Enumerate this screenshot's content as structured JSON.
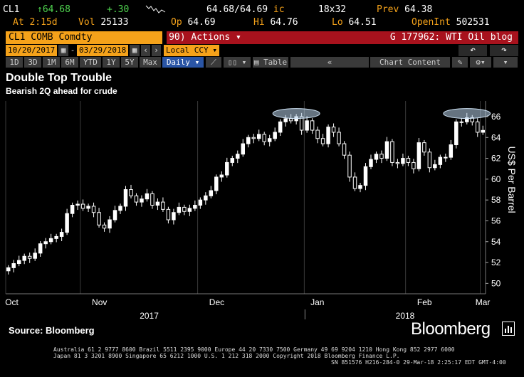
{
  "quote": {
    "ticker": "CL1",
    "last": "64.68",
    "change": "+.30",
    "at_label": "At",
    "time": "2:15d",
    "vol_label": "Vol",
    "vol": "25133",
    "bid_ask": "64.68/64.69",
    "ic": "ic",
    "size": "18x32",
    "prev_label": "Prev",
    "prev": "64.38",
    "op_label": "Op",
    "op": "64.69",
    "hi_label": "Hi",
    "hi": "64.76",
    "lo_label": "Lo",
    "lo": "64.51",
    "openint_label": "OpenInt",
    "openint": "502531"
  },
  "toolbar": {
    "security": "CL1 COMB Comdty",
    "actions_num": "90",
    "actions_label": "Actions",
    "blog": "G 177962: WTI Oil blog",
    "date_from": "10/20/2017",
    "date_to": "03/29/2018",
    "currency": "Local CCY",
    "ranges": [
      "1D",
      "3D",
      "1M",
      "6M",
      "YTD",
      "1Y",
      "5Y",
      "Max"
    ],
    "period": "Daily",
    "table_label": "Table",
    "chart_content_label": "Chart Content"
  },
  "chart_data": {
    "type": "candlestick",
    "title": "Double Top Trouble",
    "subtitle": "Bearish 2Q ahead for crude",
    "ylabel": "US$ Per Barrel",
    "ylim": [
      49,
      67.5
    ],
    "yticks": [
      50,
      52,
      54,
      56,
      58,
      60,
      62,
      64,
      66
    ],
    "x_month_labels": [
      "Oct",
      "Nov",
      "Dec",
      "Jan",
      "Feb",
      "Mar"
    ],
    "x_year_labels": [
      "2017",
      "2018"
    ],
    "grid": false,
    "closes": [
      51.5,
      51.9,
      52.2,
      52.6,
      52.4,
      52.9,
      53.8,
      54.0,
      54.3,
      54.5,
      54.9,
      56.7,
      57.5,
      57.6,
      57.2,
      57.4,
      56.8,
      55.6,
      55.3,
      56.1,
      57.0,
      57.4,
      59.0,
      58.4,
      57.8,
      58.1,
      58.6,
      57.5,
      57.8,
      57.1,
      56.1,
      56.8,
      57.3,
      56.9,
      57.2,
      57.5,
      58.0,
      58.4,
      58.9,
      60.2,
      60.4,
      61.6,
      62.0,
      62.4,
      63.4,
      64.0,
      63.9,
      64.3,
      63.6,
      63.9,
      64.5,
      65.5,
      65.8,
      65.6,
      66.0,
      64.7,
      65.6,
      64.7,
      63.9,
      63.4,
      65.0,
      64.5,
      63.4,
      62.3,
      60.2,
      59.1,
      59.4,
      61.2,
      61.9,
      62.4,
      62.0,
      63.6,
      61.6,
      61.5,
      62.0,
      61.6,
      61.0,
      63.5,
      62.6,
      61.1,
      61.4,
      62.1,
      62.1,
      63.3,
      65.5,
      65.5,
      65.9,
      65.5,
      64.5,
      64.68
    ],
    "peaks": [
      {
        "center_index": 54,
        "price": 66.3
      },
      {
        "center_index": 86,
        "price": 66.3
      }
    ]
  },
  "source": "Source: Bloomberg",
  "brand": "Bloomberg",
  "footer_lines": [
    "Australia 61 2 9777 8600 Brazil 5511 2395 9000 Europe 44 20 7330 7500 Germany 49 69 9204 1210 Hong Kong 852 2977 6000",
    "Japan 81 3 3201 8900        Singapore 65 6212 1000        U.S. 1 212 318 2000                 Copyright 2018 Bloomberg Finance L.P.",
    "SN 851576 H216-284-0 29-Mar-18  2:25:17 EDT  GMT-4:00"
  ]
}
